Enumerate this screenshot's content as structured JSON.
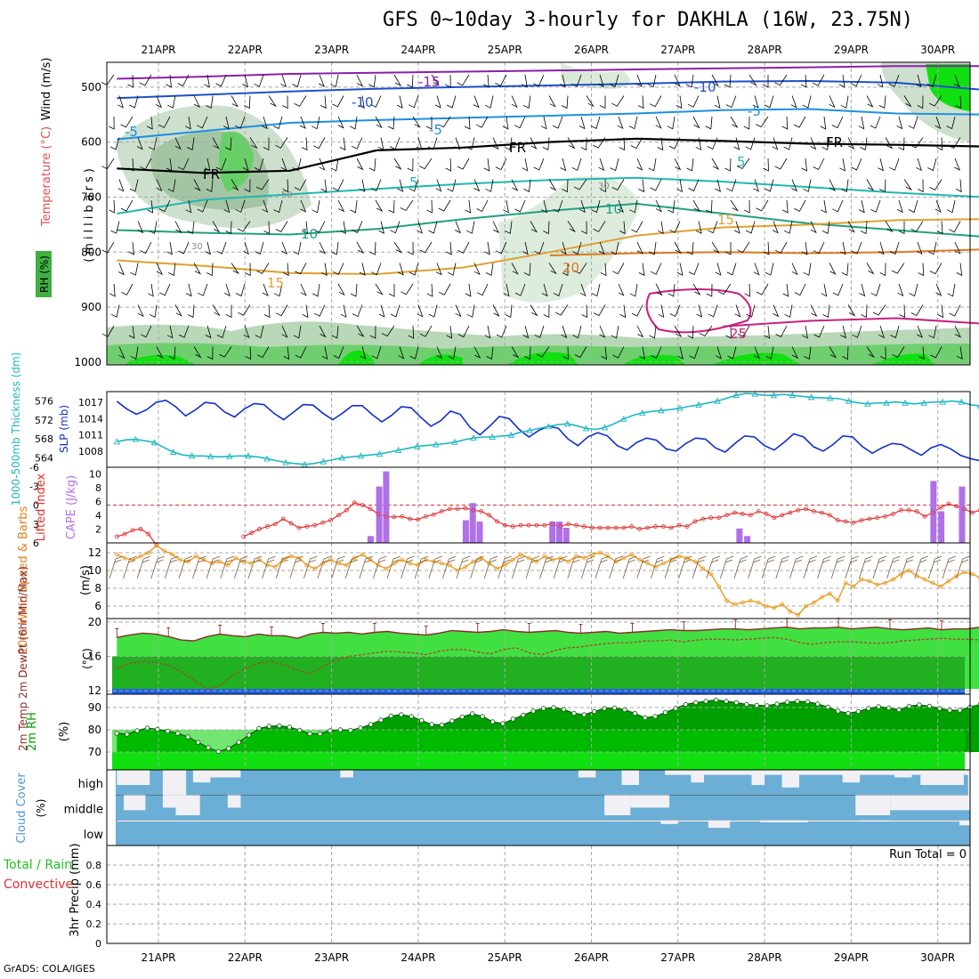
{
  "header": {
    "title": "GFS 0~10day 3-hourly for DAKHLA (16W, 23.75N)",
    "credit": "GrADS: COLA/IGES"
  },
  "chart_data": [
    {
      "type": "line",
      "name": "upper-air cross-section",
      "x_dates": [
        "21APR",
        "22APR",
        "23APR",
        "24APR",
        "25APR",
        "26APR",
        "27APR",
        "28APR",
        "29APR",
        "30APR"
      ],
      "y_axis_label": "(millibars)",
      "side_labels": [
        "RH (%)",
        "Temperature (°C)",
        "Wind (m/s)"
      ],
      "yticks": [
        500,
        600,
        700,
        800,
        900,
        1000
      ],
      "ylim": [
        455,
        1005
      ],
      "temperature_contour_labels": [
        "-15",
        "-10",
        "-5",
        "FR",
        "5",
        "10",
        "15",
        "20",
        "25"
      ],
      "rh_contour_labels": [
        "30",
        "50",
        "30"
      ],
      "colors": {
        "t_minus15": "#8b1fa9",
        "t_minus10": "#1f4fc8",
        "t_minus5": "#1e90e0",
        "freeze": "#000000",
        "t5": "#20b8b0",
        "t10": "#20a080",
        "t15": "#e0a030",
        "t20": "#e07a20",
        "t25": "#c82080",
        "rh_high": "#00e020",
        "rh_mid": "#40b040",
        "rh_low": "#cfe8cf"
      }
    },
    {
      "type": "line",
      "name": "thickness and SLP",
      "left_label": "1000-500mb Thickness (dm)",
      "right_label": "SLP (mb)",
      "left_ticks": [
        564,
        568,
        572,
        576
      ],
      "right_ticks": [
        1008,
        1011,
        1014,
        1017
      ],
      "series": [
        {
          "name": "SLP (mb)",
          "color": "#1030c8",
          "values": [
            1017.2,
            1015.8,
            1014.8,
            1015.6,
            1017.0,
            1017.4,
            1016.2,
            1014.5,
            1015.6,
            1017.0,
            1016.8,
            1015.2,
            1014.3,
            1015.8,
            1016.8,
            1016.6,
            1015.0,
            1013.8,
            1015.2,
            1016.6,
            1016.5,
            1015.0,
            1013.8,
            1015.0,
            1016.4,
            1016.4,
            1014.8,
            1013.4,
            1014.6,
            1016.2,
            1016.0,
            1014.2,
            1012.6,
            1013.6,
            1015.4,
            1014.8,
            1012.4,
            1011.0,
            1012.6,
            1014.4,
            1014.0,
            1012.0,
            1010.6,
            1011.8,
            1012.6,
            1012.2,
            1010.2,
            1009.0,
            1010.6,
            1011.4,
            1010.8,
            1009.0,
            1008.2,
            1009.6,
            1010.4,
            1010.0,
            1008.4,
            1008.0,
            1009.4,
            1010.4,
            1010.2,
            1008.6,
            1007.8,
            1009.4,
            1010.8,
            1010.6,
            1009.0,
            1008.2,
            1009.6,
            1011.2,
            1010.6,
            1008.8,
            1008.0,
            1009.2,
            1010.8,
            1010.6,
            1008.8,
            1007.6,
            1008.6,
            1009.4,
            1009.2,
            1008.2,
            1007.2,
            1008.6,
            1009.2,
            1008.4,
            1007.2,
            1006.6,
            1006.2
          ]
        },
        {
          "name": "1000-500mb Thickness (dm)",
          "color": "#20b8c0",
          "values": [
            567.4,
            567.8,
            567.9,
            567.6,
            567.2,
            566.2,
            565.2,
            564.6,
            564.4,
            564.4,
            564.3,
            564.2,
            564.3,
            564.4,
            564.4,
            564.2,
            563.8,
            563.4,
            563.0,
            562.8,
            562.6,
            562.8,
            563.2,
            563.6,
            564.0,
            564.2,
            564.4,
            564.6,
            564.8,
            565.2,
            565.6,
            566.0,
            566.4,
            566.6,
            566.8,
            567.0,
            567.3,
            567.8,
            568.2,
            568.4,
            568.4,
            568.6,
            568.8,
            569.4,
            569.8,
            570.2,
            570.6,
            571.0,
            571.2,
            570.8,
            570.2,
            570.0,
            570.4,
            571.2,
            572.2,
            573.0,
            573.5,
            573.8,
            574.0,
            574.2,
            574.5,
            574.9,
            575.2,
            575.6,
            576.0,
            576.6,
            577.2,
            577.6,
            577.5,
            577.2,
            577.2,
            577.4,
            577.2,
            577.0,
            576.8,
            576.7,
            576.6,
            576.5,
            576.0,
            575.6,
            575.4,
            575.6,
            575.6,
            575.8,
            575.6,
            575.4,
            575.6,
            575.8,
            575.8,
            576.0,
            575.8,
            575.2,
            575.0
          ]
        }
      ]
    },
    {
      "type": "bar",
      "name": "lifted index and CAPE",
      "left_label": "Lifted Index",
      "right_label": "CAPE (J/kg)",
      "left_ticks": [
        "-6",
        "-3",
        "0",
        "3",
        "6"
      ],
      "right_ticks": [
        "10",
        "8",
        "6",
        "4",
        "2"
      ],
      "lifted_index": [
        5.0,
        4.6,
        4.0,
        3.8,
        4.6,
        6.4,
        null,
        null,
        null,
        null,
        null,
        null,
        null,
        null,
        null,
        null,
        5.0,
        4.4,
        3.8,
        3.4,
        3.0,
        2.2,
        2.9,
        3.6,
        3.4,
        3.2,
        2.8,
        2.4,
        1.6,
        0.8,
        -0.4,
        0.0,
        0.6,
        1.4,
        1.8,
        1.9,
        1.8,
        2.2,
        2.3,
        1.8,
        1.5,
        1.0,
        0.6,
        0.6,
        0.5,
        0.8,
        1.0,
        1.6,
        2.6,
        3.2,
        3.4,
        3.2,
        3.2,
        3.2,
        3.2,
        3.0,
        3.4,
        3.0,
        3.2,
        3.4,
        3.6,
        3.6,
        3.6,
        3.6,
        3.6,
        3.4,
        3.8,
        3.6,
        3.4,
        3.4,
        3.6,
        3.2,
        3.4,
        2.6,
        2.2,
        2.0,
        2.0,
        1.6,
        1.2,
        1.4,
        1.6,
        1.0,
        1.4,
        2.0,
        1.6,
        1.2,
        0.8,
        0.6,
        1.0,
        1.2,
        1.6,
        2.4,
        2.6,
        2.8,
        2.4,
        2.2,
        2.0,
        1.8,
        1.4,
        0.8,
        0.8,
        1.0,
        1.8,
        1.2,
        0.4,
        -0.2,
        0.2,
        0.6,
        1.2,
        0.8
      ],
      "cape_bars": [
        {
          "date_offset": 2.45,
          "value": 1.0
        },
        {
          "date_offset": 2.55,
          "value": 8.2
        },
        {
          "date_offset": 2.63,
          "value": 10.4
        },
        {
          "date_offset": 3.55,
          "value": 3.3
        },
        {
          "date_offset": 3.63,
          "value": 5.8
        },
        {
          "date_offset": 3.71,
          "value": 3.1
        },
        {
          "date_offset": 4.55,
          "value": 3.1
        },
        {
          "date_offset": 4.63,
          "value": 3.1
        },
        {
          "date_offset": 4.71,
          "value": 2.2
        },
        {
          "date_offset": 6.71,
          "value": 2.1
        },
        {
          "date_offset": 6.8,
          "value": 1.0
        },
        {
          "date_offset": 8.95,
          "value": 9.0
        },
        {
          "date_offset": 9.04,
          "value": 4.6
        },
        {
          "date_offset": 9.28,
          "value": 8.2
        }
      ],
      "colors": {
        "lifted_index": "#e03030",
        "cape": "#b070e8",
        "zero_line": "#e03030"
      }
    },
    {
      "type": "line",
      "name": "10m wind speed and barbs",
      "left_label": "10m Wind Speed & Barbs",
      "unit_label": "(m/s)",
      "yticks": [
        6,
        8,
        10,
        12
      ],
      "ylim": [
        4.6,
        13.1
      ],
      "series": [
        {
          "name": "10m Wind Speed",
          "color": "#e89a20",
          "values": [
            11.8,
            11.4,
            11.2,
            11.6,
            12.0,
            12.8,
            12.2,
            11.8,
            11.2,
            11.0,
            11.6,
            11.2,
            10.8,
            11.0,
            10.6,
            11.4,
            11.0,
            10.8,
            11.2,
            10.6,
            10.4,
            11.2,
            11.6,
            11.4,
            10.6,
            10.2,
            10.8,
            11.2,
            10.8,
            10.6,
            11.4,
            11.8,
            11.2,
            10.6,
            10.2,
            10.8,
            11.2,
            10.8,
            10.6,
            11.2,
            11.0,
            10.8,
            10.6,
            10.0,
            10.4,
            11.0,
            11.4,
            10.8,
            10.2,
            10.6,
            11.2,
            11.8,
            11.4,
            11.0,
            11.6,
            11.2,
            11.4,
            11.0,
            11.6,
            11.4,
            11.8,
            12.0,
            11.6,
            11.0,
            11.4,
            11.8,
            11.2,
            10.8,
            10.4,
            10.8,
            11.2,
            11.6,
            11.4,
            11.0,
            10.2,
            9.6,
            8.2,
            6.6,
            6.2,
            6.4,
            6.6,
            6.4,
            6.0,
            5.8,
            6.2,
            5.4,
            5.0,
            6.0,
            6.4,
            7.0,
            7.4,
            6.6,
            8.6,
            8.2,
            9.0,
            8.8,
            8.4,
            8.6,
            9.0,
            9.6,
            10.0,
            9.4,
            9.0,
            8.6,
            8.2,
            8.8,
            9.4,
            9.8,
            9.6,
            9.2
          ]
        }
      ]
    },
    {
      "type": "area",
      "name": "2m temperature and dewpoint",
      "left_label": "2m Temp 2m DewPt (6hr Min/Max)",
      "unit_label": "(°C)",
      "yticks": [
        12,
        16,
        20
      ],
      "ylim": [
        11.6,
        20.4
      ],
      "series": [
        {
          "name": "2m Temp",
          "color": "#8b2a2a",
          "values": [
            18.2,
            18.5,
            18.7,
            18.6,
            18.3,
            17.9,
            17.8,
            18.3,
            18.6,
            18.4,
            18.3,
            18.6,
            18.4,
            18.4,
            18.1,
            18.6,
            18.8,
            18.7,
            18.8,
            18.6,
            18.8,
            18.9,
            18.7,
            18.6,
            18.5,
            18.7,
            19.0,
            18.9,
            18.8,
            18.9,
            19.1,
            18.9,
            18.8,
            18.9,
            19.0,
            18.8,
            18.7,
            18.8,
            18.9,
            18.7,
            18.8,
            18.9,
            19.0,
            19.1,
            19.0,
            19.0,
            19.1,
            19.2,
            19.2,
            19.1,
            19.2,
            19.3,
            19.4,
            19.2,
            19.3,
            19.3,
            19.4,
            19.2,
            19.3,
            19.4,
            19.2,
            19.1,
            19.2,
            19.3,
            19.1,
            19.2,
            19.2,
            19.4
          ]
        },
        {
          "name": "2m DewPt",
          "color": "#b04030",
          "values": [
            14.6,
            15.2,
            15.4,
            15.3,
            15.0,
            14.2,
            13.2,
            12.2,
            12.6,
            13.8,
            14.6,
            15.2,
            15.4,
            15.0,
            14.4,
            14.0,
            14.8,
            15.6,
            16.0,
            16.2,
            16.4,
            16.6,
            16.5,
            16.4,
            16.2,
            16.6,
            16.8,
            16.8,
            16.5,
            16.3,
            16.8,
            17.0,
            16.4,
            16.2,
            16.7,
            17.0,
            17.1,
            17.3,
            17.5,
            17.6,
            17.6,
            17.8,
            17.8,
            17.9,
            17.7,
            17.9,
            18.0,
            18.0,
            17.9,
            18.0,
            18.1,
            18.2,
            18.0,
            17.6,
            17.4,
            17.6,
            17.7,
            17.7,
            17.6,
            17.5,
            17.6,
            17.8,
            17.9,
            18.0,
            18.1,
            18.0,
            18.0,
            17.9
          ]
        }
      ],
      "colors": {
        "temp_fill": "#40e040",
        "dew_fill": "#20b020",
        "ground": "#1e60e8"
      }
    },
    {
      "type": "area",
      "name": "2m relative humidity",
      "left_label": "2m RH",
      "unit_label": "(%)",
      "yticks": [
        70,
        80,
        90
      ],
      "ylim": [
        62,
        96
      ],
      "series": [
        {
          "name": "2m RH",
          "color": "#006000",
          "values": [
            78.4,
            78.0,
            79.6,
            80.8,
            80.2,
            79.4,
            78.4,
            76.8,
            74.4,
            72.0,
            70.2,
            71.6,
            74.4,
            77.6,
            80.6,
            81.6,
            81.8,
            81.2,
            79.8,
            78.2,
            78.2,
            79.6,
            80.0,
            79.8,
            80.8,
            82.4,
            84.4,
            86.2,
            86.8,
            86.0,
            84.2,
            82.4,
            82.2,
            84.0,
            85.8,
            87.2,
            86.0,
            83.6,
            82.8,
            84.8,
            86.6,
            88.4,
            89.6,
            90.0,
            89.2,
            87.4,
            86.8,
            88.2,
            89.6,
            89.8,
            89.0,
            87.4,
            85.4,
            86.0,
            87.8,
            89.6,
            91.4,
            92.2,
            92.8,
            93.4,
            92.8,
            92.2,
            91.4,
            91.0,
            90.8,
            91.6,
            92.4,
            92.8,
            92.6,
            91.6,
            90.2,
            88.4,
            87.4,
            88.2,
            89.6,
            90.4,
            89.8,
            89.0,
            90.6,
            91.2,
            90.6,
            89.6,
            88.8,
            88.8,
            90.2,
            91.4
          ]
        }
      ],
      "colors": {
        "fill_top": "#00a000",
        "fill_bottom": "#00d000",
        "band": "#10e010"
      }
    },
    {
      "type": "heatmap",
      "name": "cloud cover",
      "left_label": "Cloud Cover",
      "unit_label": "(%)",
      "rows": [
        "high",
        "middle",
        "low"
      ],
      "colors": {
        "cloud": "#6baed6",
        "clear": "#f0f0f5"
      }
    },
    {
      "type": "line",
      "name": "3hr precipitation",
      "left_label": "Total / Rain Convective",
      "unit_label": "3hr Precip (mm)",
      "yticks": [
        0,
        0.2,
        0.4,
        0.6,
        0.8
      ],
      "ylim": [
        0,
        1.0
      ],
      "run_total_label": "Run Total = 0",
      "series": [
        {
          "name": "Total / Rain",
          "color": "#20c020",
          "values": []
        },
        {
          "name": "Convective",
          "color": "#e03030",
          "values": []
        }
      ]
    }
  ]
}
